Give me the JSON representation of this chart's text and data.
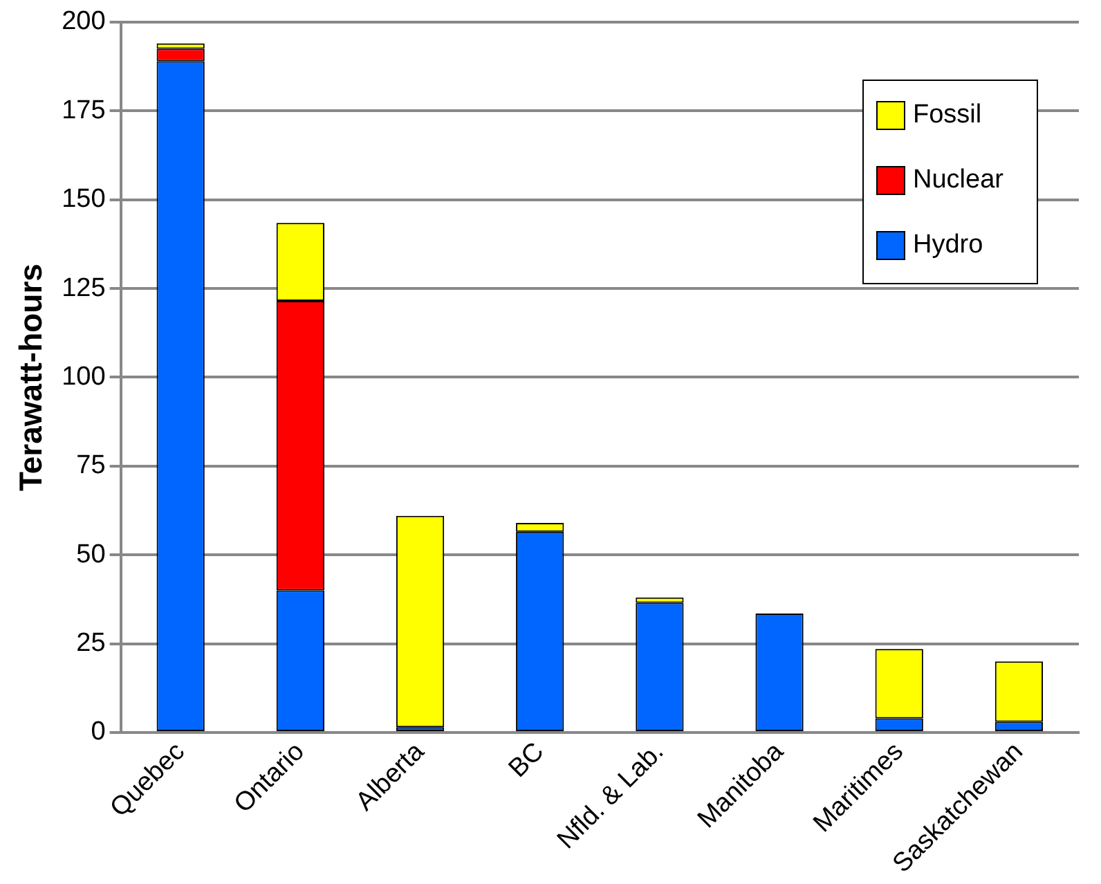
{
  "chart_data": {
    "type": "bar",
    "ylabel": "Terawatt-hours",
    "categories": [
      "Quebec",
      "Ontario",
      "Alberta",
      "BC",
      "Nfld. & Lab.",
      "Manitoba",
      "Maritimes",
      "Saskatchewan"
    ],
    "stacked": true,
    "ylim": [
      0,
      200
    ],
    "yticks": [
      0,
      25,
      50,
      75,
      100,
      125,
      150,
      175,
      200
    ],
    "grid": "y",
    "legend": "top right",
    "series": [
      {
        "name": "Hydro",
        "color": "#0066ff",
        "values": [
          189,
          40,
          1.5,
          56.5,
          36.5,
          33.5,
          4,
          3
        ]
      },
      {
        "name": "Nuclear",
        "color": "#ff0000",
        "values": [
          3.5,
          81.5,
          0,
          0,
          0,
          0,
          0,
          0
        ]
      },
      {
        "name": "Fossil",
        "color": "#ffff00",
        "values": [
          1.5,
          22,
          59.5,
          2.5,
          1.5,
          0,
          19.5,
          17
        ]
      }
    ]
  }
}
